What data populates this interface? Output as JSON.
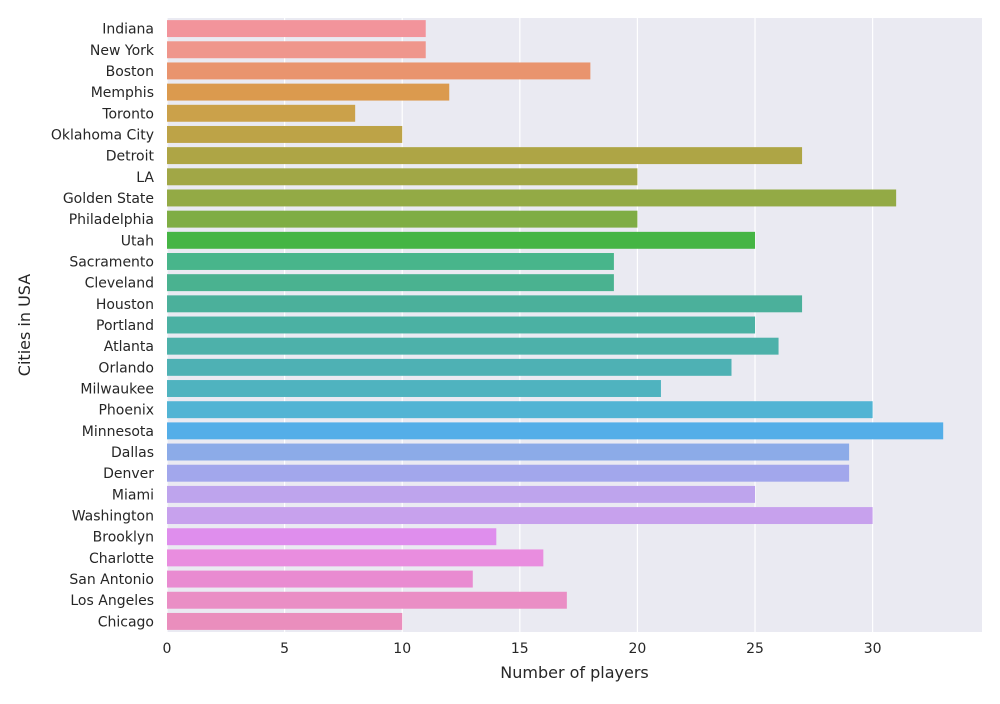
{
  "chart_data": {
    "type": "bar",
    "orientation": "horizontal",
    "xlabel": "Number of players",
    "ylabel": "Cities in USA",
    "xlim": [
      0,
      34.65
    ],
    "xticks": [
      0,
      5,
      10,
      15,
      20,
      25,
      30
    ],
    "grid": true,
    "background": "#eaeaf2",
    "categories": [
      "Indiana",
      "New York",
      "Boston",
      "Memphis",
      "Toronto",
      "Oklahoma City",
      "Detroit",
      "LA",
      "Golden State",
      "Philadelphia",
      "Utah",
      "Sacramento",
      "Cleveland",
      "Houston",
      "Portland",
      "Atlanta",
      "Orlando",
      "Milwaukee",
      "Phoenix",
      "Minnesota",
      "Dallas",
      "Denver",
      "Miami",
      "Washington",
      "Brooklyn",
      "Charlotte",
      "San Antonio",
      "Los Angeles",
      "Chicago"
    ],
    "values": [
      11,
      11,
      18,
      12,
      8,
      10,
      27,
      20,
      31,
      20,
      25,
      19,
      19,
      27,
      25,
      26,
      24,
      21,
      30,
      33,
      29,
      29,
      25,
      30,
      14,
      16,
      13,
      17,
      10
    ],
    "colors": [
      "#f2949b",
      "#ef968c",
      "#e9946e",
      "#db9a4e",
      "#cba14a",
      "#bda347",
      "#aea545",
      "#a1a746",
      "#93aa45",
      "#7fad44",
      "#45b544",
      "#48b58b",
      "#4ab290",
      "#4bb09b",
      "#4bb1a3",
      "#4db1aa",
      "#4eb1b4",
      "#4fb3bf",
      "#52b4d4",
      "#54aee8",
      "#8cabe8",
      "#a2a7ec",
      "#bea4ed",
      "#c7a1ed",
      "#df8eed",
      "#e98ddf",
      "#e98bd1",
      "#ea8ec5",
      "#ea8ebd"
    ]
  }
}
